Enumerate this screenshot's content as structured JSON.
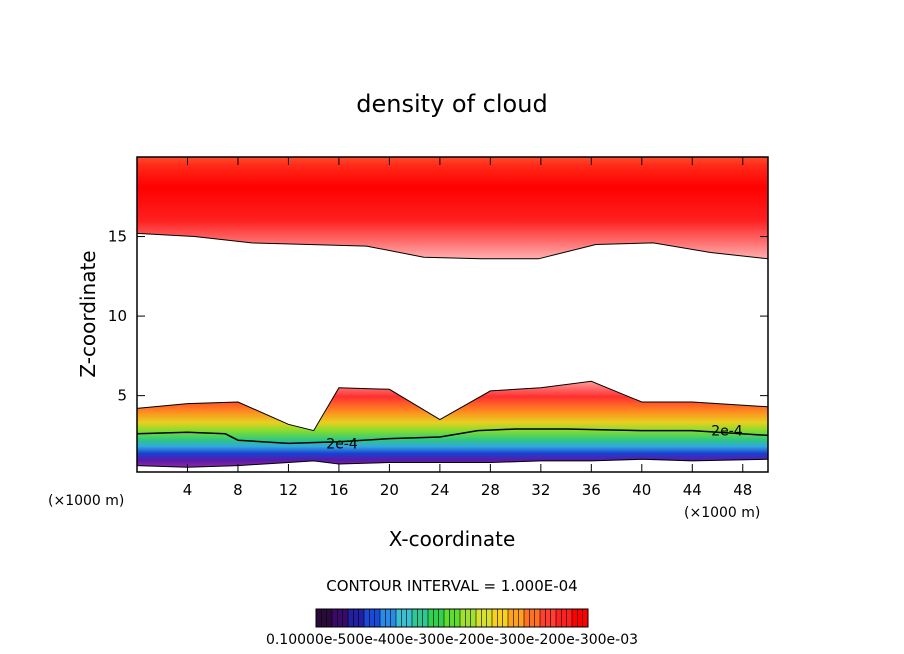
{
  "chart_data": {
    "type": "heatmap",
    "title": "density of cloud",
    "xlabel": "X-coordinate",
    "ylabel": "Z-coordinate",
    "x_unit_left": "(×1000 m)",
    "x_unit_right": "(×1000 m)",
    "xlim": [
      0,
      50
    ],
    "ylim": [
      0.2,
      20
    ],
    "x_ticks": [
      4,
      8,
      12,
      16,
      20,
      24,
      28,
      32,
      36,
      40,
      44,
      48
    ],
    "y_ticks": [
      5,
      10,
      15
    ],
    "contour_label": "2e-4",
    "contour_interval_text": "CONTOUR INTERVAL = 1.000E-04",
    "colorbar_label_text": "0.10000e-500e-400e-300e-200e-300e-200e-300e-03",
    "colorbar_colors": [
      "#2a0a3a",
      "#3a0a6a",
      "#2020a0",
      "#1a4ad8",
      "#2a8ae8",
      "#3ac0d0",
      "#30c890",
      "#30d050",
      "#60dc30",
      "#a0e030",
      "#d8e030",
      "#f8d020",
      "#ffa020",
      "#ff7020",
      "#ff4030",
      "#ff2020",
      "#ff0000"
    ],
    "upper_band": {
      "z_base": [
        15.2,
        15.0,
        14.6,
        14.5,
        14.4,
        13.7,
        13.6,
        13.6,
        14.5,
        14.6,
        14.0,
        13.6
      ],
      "z_top": 19.5
    },
    "lower_band": {
      "x": [
        0,
        4,
        8,
        12,
        14,
        16,
        20,
        24,
        28,
        32,
        36,
        40,
        44,
        50
      ],
      "z_bottom": [
        0.6,
        0.5,
        0.6,
        0.8,
        0.9,
        0.7,
        0.8,
        0.8,
        0.8,
        0.9,
        0.9,
        1.0,
        0.9,
        1.0
      ],
      "z_top": [
        4.2,
        4.5,
        4.6,
        3.2,
        2.8,
        5.5,
        5.4,
        3.5,
        5.3,
        5.5,
        5.9,
        4.6,
        4.6,
        4.3
      ]
    },
    "contour_2e4": {
      "x": [
        0,
        4,
        7,
        8,
        12,
        16,
        20,
        24,
        27,
        30,
        34,
        40,
        44,
        50
      ],
      "z": [
        2.6,
        2.7,
        2.6,
        2.2,
        2.0,
        2.1,
        2.3,
        2.4,
        2.8,
        2.9,
        2.9,
        2.8,
        2.8,
        2.5
      ]
    }
  }
}
